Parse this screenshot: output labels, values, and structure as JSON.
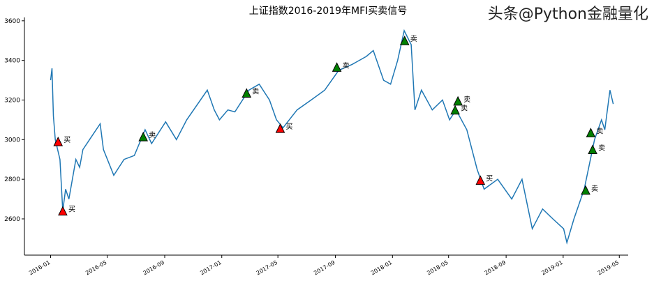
{
  "chart_data": {
    "type": "line",
    "title": "上证指数2016-2019年MFI买卖信号",
    "xlabel": "",
    "ylabel": "",
    "xlim": [
      "2015-11-06",
      "2019-05-20"
    ],
    "ylim": [
      2417,
      3617
    ],
    "yticks": [
      2600,
      2800,
      3000,
      3200,
      3400,
      3600
    ],
    "xticks": [
      "2016-01",
      "2016-05",
      "2016-09",
      "2017-01",
      "2017-05",
      "2017-09",
      "2018-01",
      "2018-05",
      "2018-09",
      "2019-01",
      "2019-05"
    ],
    "grid": false,
    "line_color": "#1f77b4",
    "series": [
      {
        "points": [
          [
            "2016-01-01",
            3300
          ],
          [
            "2016-01-04",
            3360
          ],
          [
            "2016-01-07",
            3120
          ],
          [
            "2016-01-11",
            3000
          ],
          [
            "2016-01-21",
            2900
          ],
          [
            "2016-01-27",
            2640
          ],
          [
            "2016-02-02",
            2750
          ],
          [
            "2016-02-09",
            2700
          ],
          [
            "2016-02-24",
            2900
          ],
          [
            "2016-03-03",
            2860
          ],
          [
            "2016-03-10",
            2950
          ],
          [
            "2016-04-16",
            3080
          ],
          [
            "2016-04-23",
            2950
          ],
          [
            "2016-05-15",
            2820
          ],
          [
            "2016-06-06",
            2900
          ],
          [
            "2016-06-28",
            2920
          ],
          [
            "2016-07-21",
            3050
          ],
          [
            "2016-08-04",
            2980
          ],
          [
            "2016-09-03",
            3090
          ],
          [
            "2016-09-26",
            3000
          ],
          [
            "2016-10-18",
            3100
          ],
          [
            "2016-12-01",
            3250
          ],
          [
            "2016-12-16",
            3150
          ],
          [
            "2016-12-27",
            3100
          ],
          [
            "2017-01-14",
            3150
          ],
          [
            "2017-01-29",
            3140
          ],
          [
            "2017-02-28",
            3250
          ],
          [
            "2017-03-22",
            3280
          ],
          [
            "2017-04-13",
            3200
          ],
          [
            "2017-04-28",
            3100
          ],
          [
            "2017-05-12",
            3060
          ],
          [
            "2017-06-11",
            3150
          ],
          [
            "2017-07-11",
            3200
          ],
          [
            "2017-08-09",
            3250
          ],
          [
            "2017-09-08",
            3350
          ],
          [
            "2017-10-07",
            3380
          ],
          [
            "2017-11-06",
            3420
          ],
          [
            "2017-11-21",
            3450
          ],
          [
            "2017-12-13",
            3300
          ],
          [
            "2017-12-28",
            3280
          ],
          [
            "2018-01-12",
            3400
          ],
          [
            "2018-01-26",
            3550
          ],
          [
            "2018-02-10",
            3480
          ],
          [
            "2018-02-18",
            3150
          ],
          [
            "2018-03-04",
            3250
          ],
          [
            "2018-03-27",
            3150
          ],
          [
            "2018-04-18",
            3200
          ],
          [
            "2018-05-03",
            3100
          ],
          [
            "2018-05-17",
            3150
          ],
          [
            "2018-06-09",
            3050
          ],
          [
            "2018-07-01",
            2850
          ],
          [
            "2018-07-16",
            2750
          ],
          [
            "2018-08-14",
            2800
          ],
          [
            "2018-09-13",
            2700
          ],
          [
            "2018-10-05",
            2800
          ],
          [
            "2018-10-27",
            2550
          ],
          [
            "2018-11-18",
            2650
          ],
          [
            "2018-12-10",
            2600
          ],
          [
            "2019-01-02",
            2550
          ],
          [
            "2019-01-09",
            2480
          ],
          [
            "2019-01-24",
            2600
          ],
          [
            "2019-02-15",
            2750
          ],
          [
            "2019-03-09",
            3000
          ],
          [
            "2019-03-24",
            3100
          ],
          [
            "2019-03-31",
            3050
          ],
          [
            "2019-04-11",
            3250
          ],
          [
            "2019-04-18",
            3180
          ]
        ]
      }
    ],
    "signals": [
      {
        "date": "2016-01-17",
        "value": 2990,
        "label": "买",
        "color": "#ff0000"
      },
      {
        "date": "2016-01-27",
        "value": 2640,
        "label": "买",
        "color": "#ff0000"
      },
      {
        "date": "2016-07-17",
        "value": 3015,
        "label": "卖",
        "color": "#008000"
      },
      {
        "date": "2017-02-23",
        "value": 3235,
        "label": "卖",
        "color": "#008000"
      },
      {
        "date": "2017-05-06",
        "value": 3057,
        "label": "买",
        "color": "#ff0000"
      },
      {
        "date": "2017-09-04",
        "value": 3366,
        "label": "卖",
        "color": "#008000"
      },
      {
        "date": "2018-01-27",
        "value": 3500,
        "label": "卖",
        "color": "#008000"
      },
      {
        "date": "2018-05-15",
        "value": 3150,
        "label": "卖",
        "color": "#008000"
      },
      {
        "date": "2018-05-21",
        "value": 3195,
        "label": "卖",
        "color": "#008000"
      },
      {
        "date": "2018-07-08",
        "value": 2795,
        "label": "买",
        "color": "#ff0000"
      },
      {
        "date": "2019-02-18",
        "value": 2745,
        "label": "卖",
        "color": "#008000"
      },
      {
        "date": "2019-03-01",
        "value": 3035,
        "label": "卖",
        "color": "#008000"
      },
      {
        "date": "2019-03-05",
        "value": 2950,
        "label": "卖",
        "color": "#008000"
      }
    ]
  },
  "watermark": "头条@Python金融量化"
}
